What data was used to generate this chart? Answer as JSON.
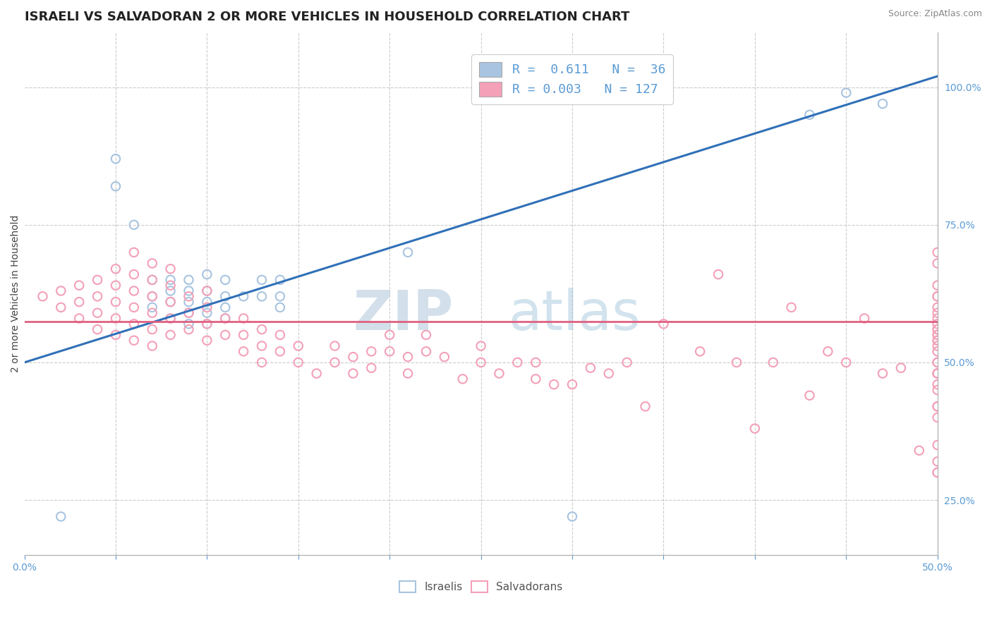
{
  "title": "ISRAELI VS SALVADORAN 2 OR MORE VEHICLES IN HOUSEHOLD CORRELATION CHART",
  "source_text": "Source: ZipAtlas.com",
  "ylabel": "2 or more Vehicles in Household",
  "xlim": [
    0.0,
    0.5
  ],
  "ylim": [
    0.15,
    1.1
  ],
  "yticks_right": [
    0.25,
    0.5,
    0.75,
    1.0
  ],
  "ytick_right_labels": [
    "25.0%",
    "50.0%",
    "75.0%",
    "100.0%"
  ],
  "israeli_R": 0.611,
  "israeli_N": 36,
  "salvadoran_R": 0.003,
  "salvadoran_N": 127,
  "israeli_color": "#a8c4e0",
  "salvadoran_color": "#f4a0b8",
  "israeli_line_color": "#3070b8",
  "salvadoran_line_color": "#e06080",
  "watermark_zip": "ZIP",
  "watermark_atlas": "atlas",
  "background_color": "#ffffff",
  "grid_color": "#cccccc",
  "title_fontsize": 13,
  "axis_label_fontsize": 10,
  "tick_fontsize": 10,
  "legend_fontsize": 13,
  "israeli_x": [
    0.02,
    0.05,
    0.05,
    0.06,
    0.07,
    0.07,
    0.07,
    0.08,
    0.08,
    0.08,
    0.08,
    0.09,
    0.09,
    0.09,
    0.09,
    0.09,
    0.1,
    0.1,
    0.1,
    0.1,
    0.1,
    0.11,
    0.11,
    0.11,
    0.11,
    0.12,
    0.13,
    0.13,
    0.14,
    0.14,
    0.14,
    0.21,
    0.3,
    0.43,
    0.45,
    0.47
  ],
  "israeli_y": [
    0.22,
    0.82,
    0.87,
    0.75,
    0.6,
    0.62,
    0.65,
    0.58,
    0.61,
    0.63,
    0.65,
    0.57,
    0.59,
    0.61,
    0.63,
    0.65,
    0.57,
    0.59,
    0.61,
    0.63,
    0.66,
    0.58,
    0.6,
    0.62,
    0.65,
    0.62,
    0.62,
    0.65,
    0.6,
    0.62,
    0.65,
    0.7,
    0.22,
    0.95,
    0.99,
    0.97
  ],
  "salvadoran_x": [
    0.01,
    0.02,
    0.02,
    0.03,
    0.03,
    0.03,
    0.04,
    0.04,
    0.04,
    0.04,
    0.05,
    0.05,
    0.05,
    0.05,
    0.05,
    0.06,
    0.06,
    0.06,
    0.06,
    0.06,
    0.06,
    0.07,
    0.07,
    0.07,
    0.07,
    0.07,
    0.07,
    0.08,
    0.08,
    0.08,
    0.08,
    0.08,
    0.09,
    0.09,
    0.09,
    0.1,
    0.1,
    0.1,
    0.1,
    0.11,
    0.11,
    0.12,
    0.12,
    0.12,
    0.13,
    0.13,
    0.13,
    0.14,
    0.14,
    0.15,
    0.15,
    0.16,
    0.17,
    0.17,
    0.18,
    0.18,
    0.19,
    0.19,
    0.2,
    0.2,
    0.21,
    0.21,
    0.22,
    0.22,
    0.23,
    0.24,
    0.25,
    0.25,
    0.26,
    0.27,
    0.28,
    0.28,
    0.29,
    0.3,
    0.31,
    0.32,
    0.33,
    0.34,
    0.35,
    0.37,
    0.38,
    0.39,
    0.4,
    0.41,
    0.42,
    0.43,
    0.44,
    0.45,
    0.46,
    0.47,
    0.48,
    0.49,
    0.5,
    0.5,
    0.5,
    0.5,
    0.5,
    0.5,
    0.5,
    0.5,
    0.5,
    0.5,
    0.5,
    0.5,
    0.5,
    0.5,
    0.5,
    0.5,
    0.5,
    0.5,
    0.5,
    0.5,
    0.5,
    0.5,
    0.5,
    0.5,
    0.5,
    0.5,
    0.5,
    0.5,
    0.5,
    0.5,
    0.5
  ],
  "salvadoran_y": [
    0.62,
    0.6,
    0.63,
    0.58,
    0.61,
    0.64,
    0.56,
    0.59,
    0.62,
    0.65,
    0.55,
    0.58,
    0.61,
    0.64,
    0.67,
    0.54,
    0.57,
    0.6,
    0.63,
    0.66,
    0.7,
    0.53,
    0.56,
    0.59,
    0.62,
    0.65,
    0.68,
    0.55,
    0.58,
    0.61,
    0.64,
    0.67,
    0.56,
    0.59,
    0.62,
    0.54,
    0.57,
    0.6,
    0.63,
    0.55,
    0.58,
    0.52,
    0.55,
    0.58,
    0.5,
    0.53,
    0.56,
    0.52,
    0.55,
    0.5,
    0.53,
    0.48,
    0.5,
    0.53,
    0.48,
    0.51,
    0.49,
    0.52,
    0.52,
    0.55,
    0.48,
    0.51,
    0.52,
    0.55,
    0.51,
    0.47,
    0.5,
    0.53,
    0.48,
    0.5,
    0.47,
    0.5,
    0.46,
    0.46,
    0.49,
    0.48,
    0.5,
    0.42,
    0.57,
    0.52,
    0.66,
    0.5,
    0.38,
    0.5,
    0.6,
    0.44,
    0.52,
    0.5,
    0.58,
    0.48,
    0.49,
    0.34,
    0.48,
    0.54,
    0.6,
    0.42,
    0.54,
    0.55,
    0.62,
    0.7,
    0.57,
    0.4,
    0.48,
    0.56,
    0.59,
    0.64,
    0.5,
    0.52,
    0.32,
    0.48,
    0.55,
    0.3,
    0.45,
    0.56,
    0.68,
    0.42,
    0.58,
    0.35,
    0.5,
    0.53,
    0.62,
    0.3,
    0.46
  ],
  "israeli_trend_x": [
    0.0,
    0.5
  ],
  "israeli_trend_y": [
    0.5,
    1.02
  ],
  "salvadoran_trend_x": [
    0.0,
    0.5
  ],
  "salvadoran_trend_y": [
    0.574,
    0.574
  ]
}
